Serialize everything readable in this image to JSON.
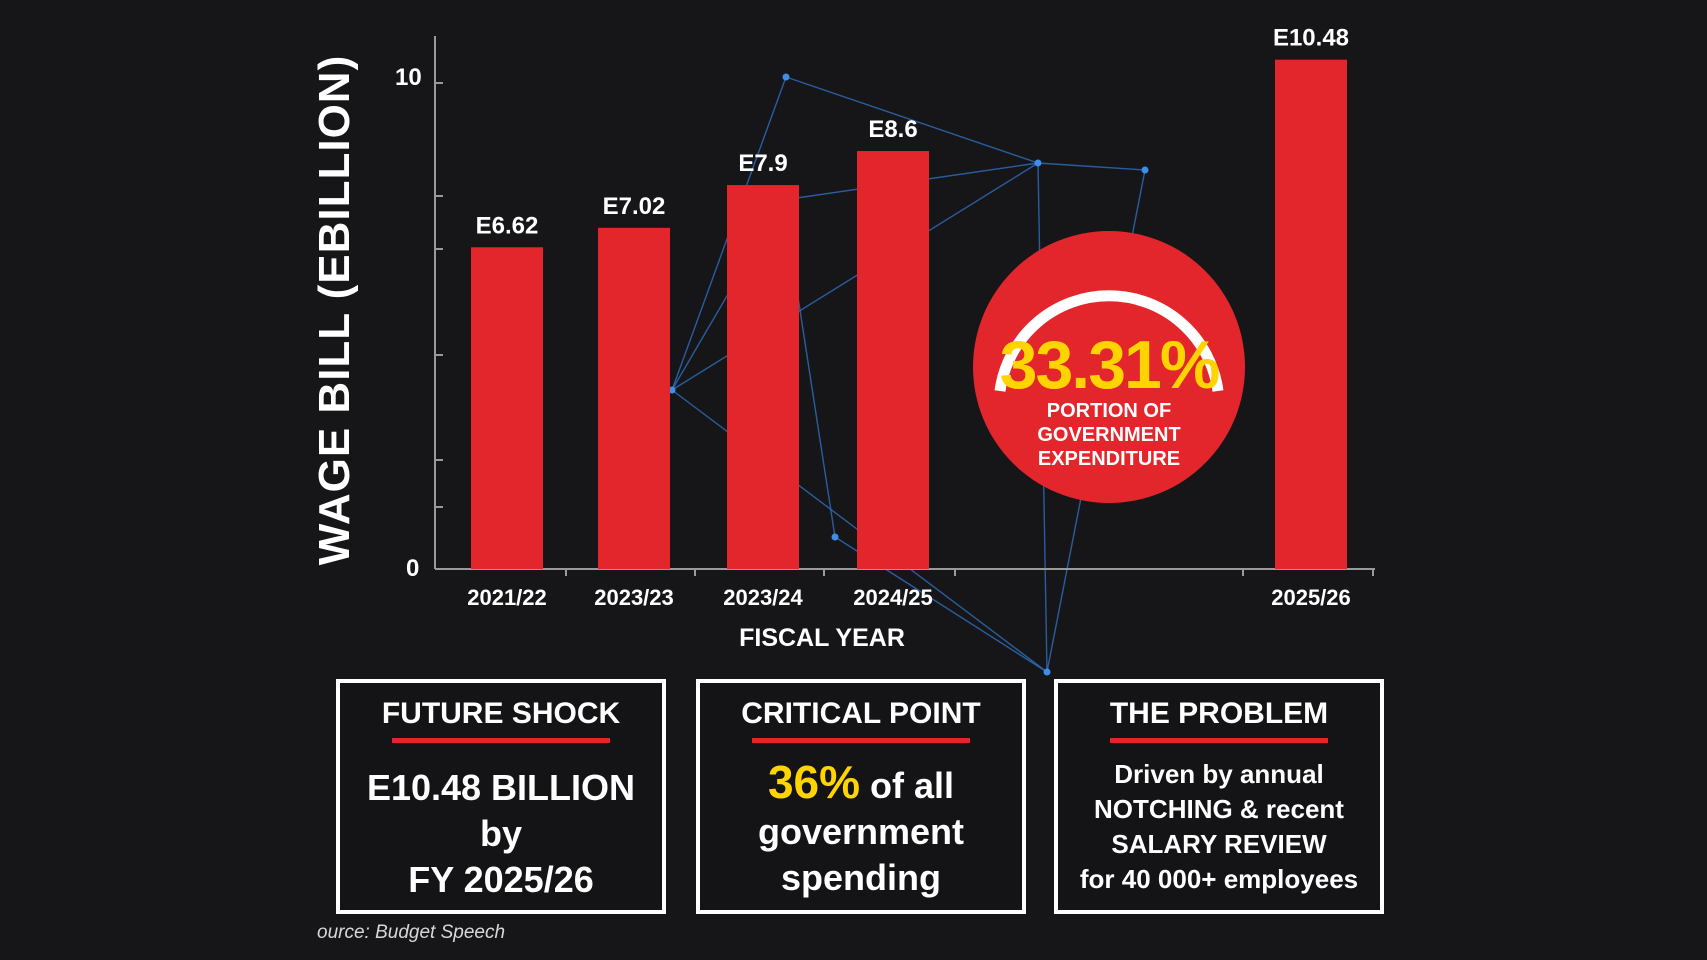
{
  "chart_data": {
    "type": "bar",
    "categories": [
      "2021/22",
      "2023/23",
      "2023/24",
      "2024/25",
      "2025/26"
    ],
    "values": [
      6.62,
      7.02,
      7.9,
      8.6,
      10.48
    ],
    "value_labels": [
      "E6.62",
      "E7.02",
      "E7.9",
      "E8.6",
      "E10.48"
    ],
    "ylabel": "WAGE BILL (EBILLION)",
    "xlabel": "FISCAL YEAR",
    "ytick_labels": [
      "0",
      "10"
    ],
    "ylim": [
      0,
      10.5
    ],
    "bar_color": "#e3262b"
  },
  "highlight": {
    "percent": "33.31%",
    "caption_lines": [
      "PORTION OF",
      "GOVERNMENT",
      "EXPENDITURE"
    ]
  },
  "boxes": {
    "future": {
      "title": "FUTURE SHOCK",
      "lines": [
        "E10.48 BILLION",
        "by",
        "FY 2025/26"
      ]
    },
    "critical": {
      "title": "CRITICAL POINT",
      "highlight": "36%",
      "line1_rest": " of all",
      "line2": "government",
      "line3": "spending"
    },
    "problem": {
      "title": "THE PROBLEM",
      "lines": [
        "Driven by annual",
        "NOTCHING & recent",
        "SALARY REVIEW",
        "for 40 000+ employees"
      ]
    }
  },
  "source": "ource: Budget Speech",
  "colors": {
    "accent": "#e3262b",
    "highlight": "#ffd400",
    "background": "#161618",
    "network": "#2f6fc0"
  }
}
